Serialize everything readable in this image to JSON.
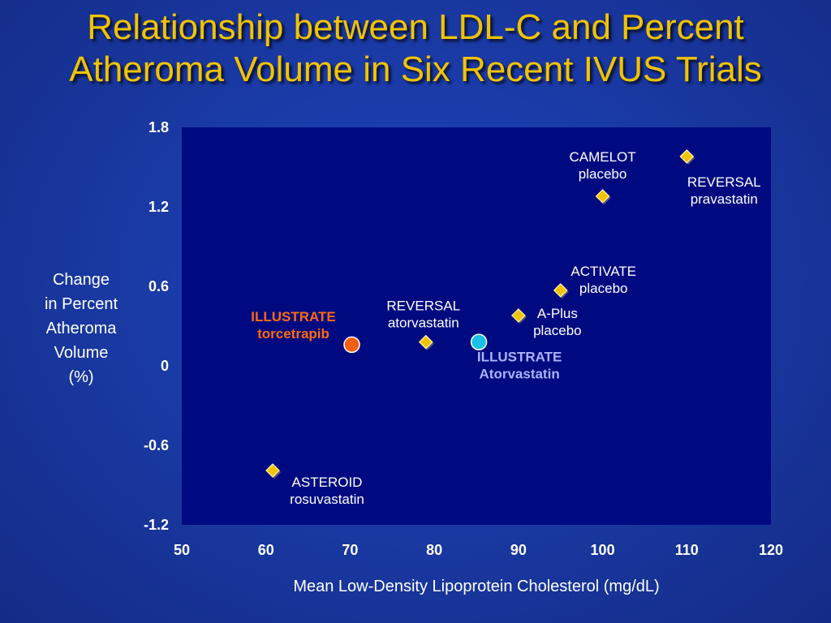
{
  "title": {
    "line1": "Relationship between LDL-C and Percent",
    "line2": "Atheroma Volume in Six Recent IVUS Trials"
  },
  "colors": {
    "background": "#1a3aa6",
    "plot_area": "#000a80",
    "title": "#f2c300",
    "diamond": "#f2c300",
    "torcetrapib_marker": "#f06010",
    "torcetrapib_label": "#ff6a10",
    "atorvastatin_marker": "#19c0e8",
    "atorvastatin_label": "#a8b4ff",
    "text": "#ffffff"
  },
  "chart_data": {
    "type": "scatter",
    "title": "Relationship between LDL-C and Percent Atheroma Volume in Six Recent IVUS Trials",
    "xlabel": "Mean Low-Density Lipoprotein Cholesterol (mg/dL)",
    "ylabel_lines": [
      "Change",
      "in Percent",
      "Atheroma",
      "Volume",
      "(%)"
    ],
    "xlim": [
      50,
      120
    ],
    "ylim": [
      -1.2,
      1.8
    ],
    "xticks": [
      "50",
      "60",
      "70",
      "80",
      "90",
      "100",
      "110",
      "120"
    ],
    "yticks": [
      "1.8",
      "1.2",
      "0.6",
      "0",
      "-0.6",
      "-1.2"
    ],
    "grid": false,
    "points": [
      {
        "name": "camelot",
        "x": 100,
        "y": 1.28,
        "marker": "diamond",
        "label_lines": [
          "CAMELOT",
          "placebo"
        ],
        "label_color": "#ffffff",
        "bold": false,
        "label_pos": "above"
      },
      {
        "name": "reversal-pravastatin",
        "x": 110,
        "y": 1.58,
        "marker": "diamond",
        "label_lines": [
          "REVERSAL",
          "pravastatin"
        ],
        "label_color": "#ffffff",
        "bold": false,
        "label_pos": "below"
      },
      {
        "name": "activate",
        "x": 95,
        "y": 0.57,
        "marker": "diamond",
        "label_lines": [
          "ACTIVATE",
          "placebo"
        ],
        "label_color": "#ffffff",
        "bold": false,
        "label_pos": "above-right"
      },
      {
        "name": "a-plus",
        "x": 90,
        "y": 0.38,
        "marker": "diamond",
        "label_lines": [
          "A-Plus",
          "placebo"
        ],
        "label_color": "#ffffff",
        "bold": false,
        "label_pos": "right"
      },
      {
        "name": "reversal-atorvastatin",
        "x": 79,
        "y": 0.18,
        "marker": "diamond",
        "label_lines": [
          "REVERSAL",
          "atorvastatin"
        ],
        "label_color": "#ffffff",
        "bold": false,
        "label_pos": "above"
      },
      {
        "name": "asteroid",
        "x": 60.8,
        "y": -0.79,
        "marker": "diamond",
        "label_lines": [
          "ASTEROID",
          "rosuvastatin"
        ],
        "label_color": "#ffffff",
        "bold": false,
        "label_pos": "below-right"
      },
      {
        "name": "illustrate-torcetrapib",
        "x": 70.2,
        "y": 0.16,
        "marker": "circle",
        "marker_color": "#f06010",
        "label_lines": [
          "ILLUSTRATE",
          "torcetrapib"
        ],
        "label_color": "#ff6a10",
        "bold": true,
        "label_pos": "left"
      },
      {
        "name": "illustrate-atorvastatin",
        "x": 85.3,
        "y": 0.18,
        "marker": "circle",
        "marker_color": "#19c0e8",
        "label_lines": [
          "ILLUSTRATE",
          "Atorvastatin"
        ],
        "label_color": "#a8b4ff",
        "bold": true,
        "label_pos": "below-right"
      }
    ]
  }
}
